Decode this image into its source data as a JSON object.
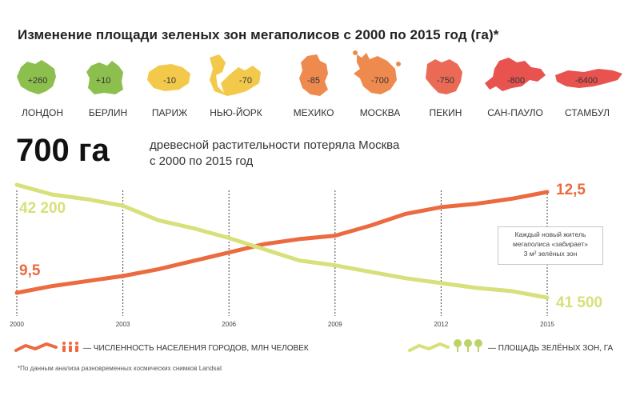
{
  "title": "Изменение площади зеленых зон мегаполисов с 2000 по 2015 год (га)*",
  "cities": [
    {
      "name": "ЛОНДОН",
      "value": "+260",
      "color": "#8dbf4e"
    },
    {
      "name": "БЕРЛИН",
      "value": "+10",
      "color": "#8dbf4e"
    },
    {
      "name": "ПАРИЖ",
      "value": "-10",
      "color": "#f3c94c"
    },
    {
      "name": "НЬЮ-ЙОРК",
      "value": "-70",
      "color": "#f3c94c"
    },
    {
      "name": "МЕХИКО",
      "value": "-85",
      "color": "#ef8a4e"
    },
    {
      "name": "МОСКВА",
      "value": "-700",
      "color": "#ef8a4e"
    },
    {
      "name": "ПЕКИН",
      "value": "-750",
      "color": "#eb6a55"
    },
    {
      "name": "САН-ПАУЛО",
      "value": "-800",
      "color": "#e8524f"
    },
    {
      "name": "СТАМБУЛ",
      "value": "-6400",
      "color": "#e8524f"
    }
  ],
  "headline": {
    "number": "700 га",
    "desc_line1": "древесной растительности потеряла Москва",
    "desc_line2": "с 2000 по 2015 год"
  },
  "note": {
    "line1": "Каждый новый житель",
    "line2": "мегаполиса «забирает»",
    "line3": "3 м² зелёных зон"
  },
  "legend": {
    "population": "— ЧИСЛЕННОСТЬ НАСЕЛЕНИЯ ГОРОДОВ, МЛН ЧЕЛОВЕК",
    "green": "— ПЛОЩАДЬ ЗЕЛЁНЫХ ЗОН, ГА"
  },
  "footnote": "*По данным анализа разновременных космических снимков Landsat",
  "chart_data": {
    "type": "line",
    "x_ticks": [
      2000,
      2003,
      2006,
      2009,
      2012,
      2015
    ],
    "x": [
      2000,
      2001,
      2002,
      2003,
      2004,
      2005,
      2006,
      2007,
      2008,
      2009,
      2010,
      2011,
      2012,
      2013,
      2014,
      2015
    ],
    "colors": {
      "population": "#ec6a3f",
      "green": "#d7e07a"
    },
    "series": [
      {
        "key": "population",
        "values": [
          9.5,
          9.7,
          9.85,
          10.0,
          10.2,
          10.45,
          10.7,
          10.95,
          11.1,
          11.2,
          11.5,
          11.85,
          12.05,
          12.15,
          12.3,
          12.5
        ]
      },
      {
        "key": "green",
        "values": [
          42200,
          42140,
          42110,
          42070,
          41980,
          41930,
          41870,
          41800,
          41730,
          41700,
          41660,
          41620,
          41590,
          41560,
          41540,
          41500
        ]
      }
    ],
    "start_labels": {
      "population": "9,5",
      "green": "42 200"
    },
    "end_labels": {
      "population": "12,5",
      "green": "41 500"
    }
  }
}
